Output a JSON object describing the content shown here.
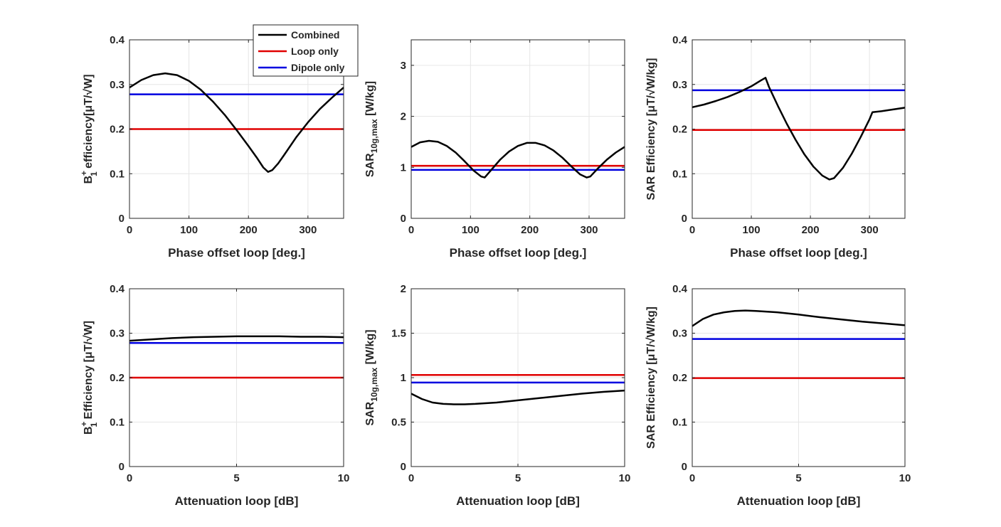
{
  "colors": {
    "combined": "#000000",
    "loop": "#e00000",
    "dipole": "#0000e0",
    "grid": "#e6e6e6",
    "axis": "#262626"
  },
  "legend": {
    "location": "top-right of first panel",
    "entries": [
      {
        "label": "Combined",
        "series": "combined"
      },
      {
        "label": "Loop only",
        "series": "loop"
      },
      {
        "label": "Dipole only",
        "series": "dipole"
      }
    ]
  },
  "chart_data": [
    {
      "type": "line",
      "id": "b1_phase",
      "xlabel": "Phase offset loop [deg.]",
      "ylabel": {
        "main": "B",
        "sup": "+",
        "sub": "1",
        "rest": " efficiency[μT/√W]"
      },
      "xlim": [
        0,
        360
      ],
      "ylim": [
        0,
        0.4
      ],
      "xticks": [
        0,
        100,
        200,
        300
      ],
      "yticks": [
        0,
        0.1,
        0.2,
        0.3,
        0.4
      ],
      "xtick_labels": [
        "0",
        "100",
        "200",
        "300"
      ],
      "ytick_labels": [
        "0",
        "0.1",
        "0.2",
        "0.3",
        "0.4"
      ],
      "series": [
        {
          "name": "Combined",
          "key": "combined",
          "x": [
            0,
            20,
            40,
            60,
            80,
            100,
            120,
            140,
            160,
            180,
            200,
            215,
            225,
            233,
            240,
            250,
            260,
            280,
            300,
            320,
            340,
            360
          ],
          "y": [
            0.293,
            0.31,
            0.321,
            0.325,
            0.321,
            0.308,
            0.288,
            0.262,
            0.232,
            0.198,
            0.162,
            0.134,
            0.114,
            0.104,
            0.108,
            0.123,
            0.142,
            0.181,
            0.215,
            0.245,
            0.27,
            0.293
          ]
        },
        {
          "name": "Loop only",
          "key": "loop",
          "x": [
            0,
            360
          ],
          "y": [
            0.2,
            0.2
          ]
        },
        {
          "name": "Dipole only",
          "key": "dipole",
          "x": [
            0,
            360
          ],
          "y": [
            0.278,
            0.278
          ]
        }
      ]
    },
    {
      "type": "line",
      "id": "sar_phase",
      "xlabel": "Phase offset loop [deg.]",
      "ylabel": {
        "main": "SAR",
        "sup": "",
        "sub": "10g,max",
        "rest": " [W/kg]"
      },
      "xlim": [
        0,
        360
      ],
      "ylim": [
        0,
        3.5
      ],
      "xticks": [
        0,
        100,
        200,
        300
      ],
      "yticks": [
        0,
        1,
        2,
        3
      ],
      "xtick_labels": [
        "0",
        "100",
        "200",
        "300"
      ],
      "ytick_labels": [
        "0",
        "1",
        "2",
        "3"
      ],
      "series": [
        {
          "name": "Combined",
          "key": "combined",
          "x": [
            0,
            15,
            30,
            45,
            60,
            75,
            90,
            105,
            118,
            124,
            135,
            150,
            165,
            180,
            195,
            210,
            225,
            240,
            255,
            270,
            285,
            296,
            302,
            315,
            330,
            345,
            360
          ],
          "y": [
            1.4,
            1.49,
            1.52,
            1.5,
            1.42,
            1.29,
            1.12,
            0.94,
            0.82,
            0.8,
            0.95,
            1.15,
            1.31,
            1.42,
            1.48,
            1.48,
            1.43,
            1.33,
            1.19,
            1.02,
            0.86,
            0.8,
            0.82,
            0.98,
            1.15,
            1.29,
            1.4
          ]
        },
        {
          "name": "Loop only",
          "key": "loop",
          "x": [
            0,
            360
          ],
          "y": [
            1.03,
            1.03
          ]
        },
        {
          "name": "Dipole only",
          "key": "dipole",
          "x": [
            0,
            360
          ],
          "y": [
            0.95,
            0.95
          ]
        }
      ]
    },
    {
      "type": "line",
      "id": "sareff_phase",
      "xlabel": "Phase offset loop [deg.]",
      "ylabel": {
        "main": "SAR Efficiency [μT/√W/kg]",
        "sup": "",
        "sub": "",
        "rest": ""
      },
      "xlim": [
        0,
        360
      ],
      "ylim": [
        0,
        0.4
      ],
      "xticks": [
        0,
        100,
        200,
        300
      ],
      "yticks": [
        0,
        0.1,
        0.2,
        0.3,
        0.4
      ],
      "xtick_labels": [
        "0",
        "100",
        "200",
        "300"
      ],
      "ytick_labels": [
        "0",
        "0.1",
        "0.2",
        "0.3",
        "0.4"
      ],
      "series": [
        {
          "name": "Combined",
          "key": "combined",
          "x": [
            0,
            20,
            40,
            60,
            80,
            100,
            115,
            124,
            130,
            145,
            160,
            175,
            190,
            205,
            220,
            232,
            240,
            255,
            270,
            285,
            300,
            305,
            320,
            340,
            360
          ],
          "y": [
            0.249,
            0.255,
            0.263,
            0.272,
            0.283,
            0.296,
            0.308,
            0.315,
            0.294,
            0.252,
            0.212,
            0.176,
            0.143,
            0.116,
            0.096,
            0.087,
            0.09,
            0.113,
            0.145,
            0.182,
            0.222,
            0.238,
            0.24,
            0.244,
            0.248
          ]
        },
        {
          "name": "Loop only",
          "key": "loop",
          "x": [
            0,
            360
          ],
          "y": [
            0.198,
            0.198
          ]
        },
        {
          "name": "Dipole only",
          "key": "dipole",
          "x": [
            0,
            360
          ],
          "y": [
            0.287,
            0.287
          ]
        }
      ]
    },
    {
      "type": "line",
      "id": "b1_atten",
      "xlabel": "Attenuation loop [dB]",
      "ylabel": {
        "main": "B",
        "sup": "+",
        "sub": "1",
        "rest": " Efficiency [μT/√W]"
      },
      "xlim": [
        0,
        10
      ],
      "ylim": [
        0,
        0.4
      ],
      "xticks": [
        0,
        5,
        10
      ],
      "yticks": [
        0,
        0.1,
        0.2,
        0.3,
        0.4
      ],
      "xtick_labels": [
        "0",
        "5",
        "10"
      ],
      "ytick_labels": [
        "0",
        "0.1",
        "0.2",
        "0.3",
        "0.4"
      ],
      "series": [
        {
          "name": "Combined",
          "key": "combined",
          "x": [
            0,
            1,
            2,
            3,
            4,
            5,
            6,
            7,
            8,
            9,
            10
          ],
          "y": [
            0.283,
            0.286,
            0.289,
            0.291,
            0.292,
            0.293,
            0.293,
            0.293,
            0.292,
            0.292,
            0.291
          ]
        },
        {
          "name": "Loop only",
          "key": "loop",
          "x": [
            0,
            10
          ],
          "y": [
            0.2,
            0.2
          ]
        },
        {
          "name": "Dipole only",
          "key": "dipole",
          "x": [
            0,
            10
          ],
          "y": [
            0.278,
            0.278
          ]
        }
      ]
    },
    {
      "type": "line",
      "id": "sar_atten",
      "xlabel": "Attenuation loop [dB]",
      "ylabel": {
        "main": "SAR",
        "sup": "",
        "sub": "10g,max",
        "rest": " [W/kg]"
      },
      "xlim": [
        0,
        10
      ],
      "ylim": [
        0,
        2
      ],
      "xticks": [
        0,
        5,
        10
      ],
      "yticks": [
        0,
        0.5,
        1,
        1.5,
        2
      ],
      "xtick_labels": [
        "0",
        "5",
        "10"
      ],
      "ytick_labels": [
        "0",
        "0.5",
        "1",
        "1.5",
        "2"
      ],
      "series": [
        {
          "name": "Combined",
          "key": "combined",
          "x": [
            0,
            0.5,
            1,
            1.5,
            2,
            2.5,
            3,
            4,
            5,
            6,
            7,
            8,
            9,
            10
          ],
          "y": [
            0.82,
            0.76,
            0.72,
            0.705,
            0.7,
            0.7,
            0.705,
            0.72,
            0.745,
            0.77,
            0.795,
            0.82,
            0.84,
            0.855
          ]
        },
        {
          "name": "Loop only",
          "key": "loop",
          "x": [
            0,
            10
          ],
          "y": [
            1.03,
            1.03
          ]
        },
        {
          "name": "Dipole only",
          "key": "dipole",
          "x": [
            0,
            10
          ],
          "y": [
            0.945,
            0.945
          ]
        }
      ]
    },
    {
      "type": "line",
      "id": "sareff_atten",
      "xlabel": "Attenuation loop [dB]",
      "ylabel": {
        "main": "SAR Efficiency [μT/√W/kg]",
        "sup": "",
        "sub": "",
        "rest": ""
      },
      "xlim": [
        0,
        10
      ],
      "ylim": [
        0,
        0.4
      ],
      "xticks": [
        0,
        5,
        10
      ],
      "yticks": [
        0,
        0.1,
        0.2,
        0.3,
        0.4
      ],
      "xtick_labels": [
        "0",
        "5",
        "10"
      ],
      "ytick_labels": [
        "0",
        "0.1",
        "0.2",
        "0.3",
        "0.4"
      ],
      "series": [
        {
          "name": "Combined",
          "key": "combined",
          "x": [
            0,
            0.5,
            1,
            1.5,
            2,
            2.5,
            3,
            4,
            5,
            6,
            7,
            8,
            9,
            10
          ],
          "y": [
            0.316,
            0.332,
            0.342,
            0.347,
            0.35,
            0.351,
            0.35,
            0.347,
            0.342,
            0.336,
            0.331,
            0.326,
            0.322,
            0.318
          ]
        },
        {
          "name": "Loop only",
          "key": "loop",
          "x": [
            0,
            10
          ],
          "y": [
            0.199,
            0.199
          ]
        },
        {
          "name": "Dipole only",
          "key": "dipole",
          "x": [
            0,
            10
          ],
          "y": [
            0.287,
            0.287
          ]
        }
      ]
    }
  ]
}
